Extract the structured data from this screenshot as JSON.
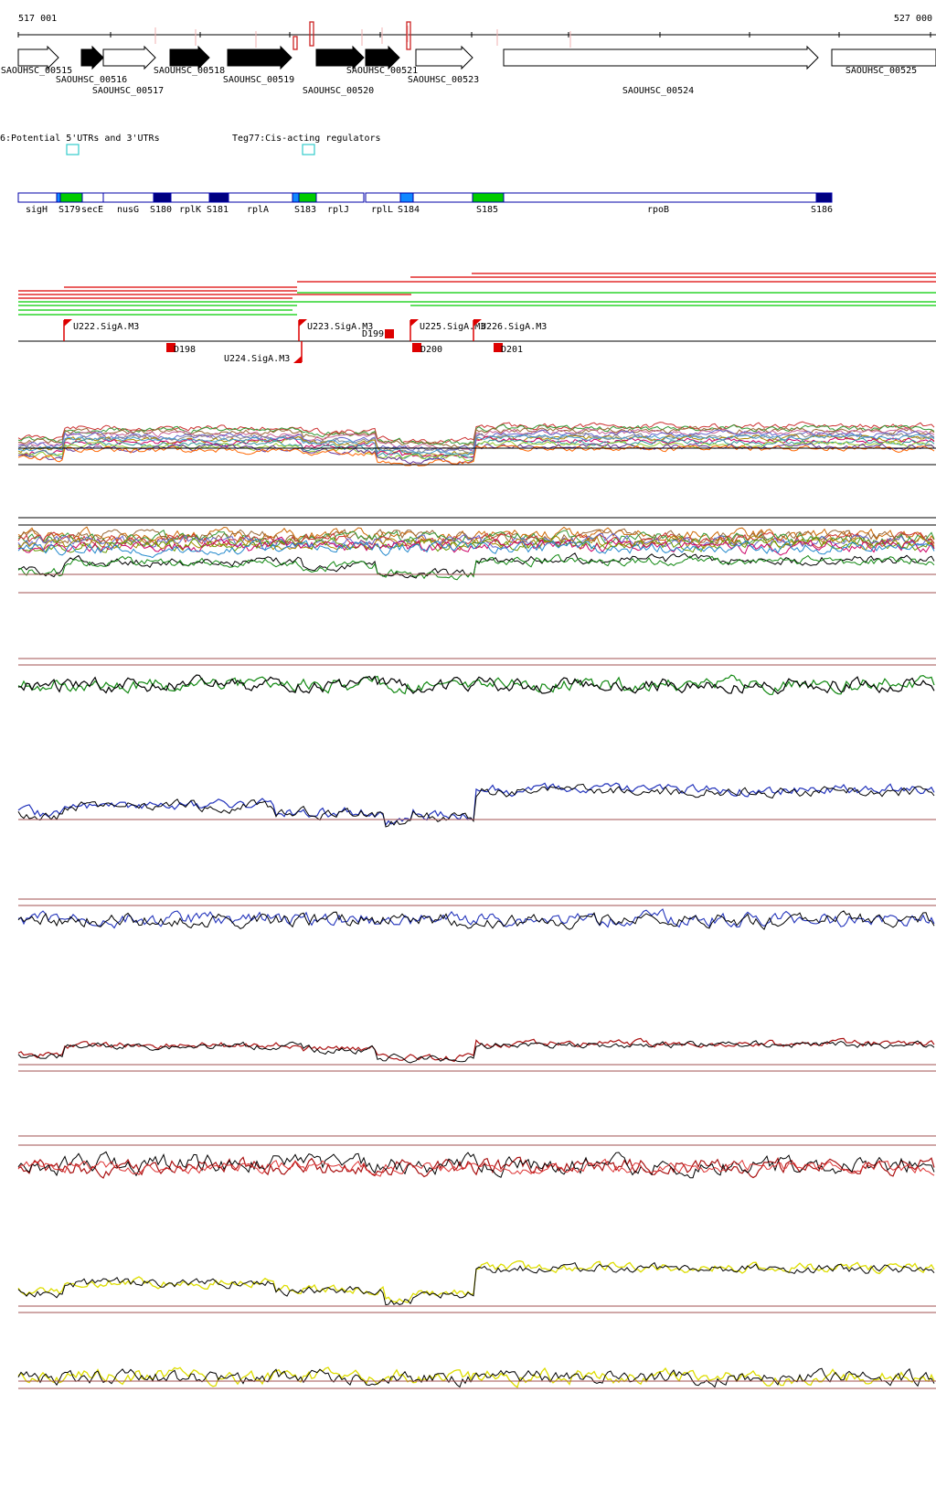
{
  "coords": {
    "start": "517 001",
    "end": "527 000"
  },
  "genes": [
    {
      "id": "SAOUHSC_00515",
      "filled": false
    },
    {
      "id": "SAOUHSC_00516",
      "filled": true
    },
    {
      "id": "SAOUHSC_00517",
      "filled": false
    },
    {
      "id": "SAOUHSC_00518",
      "filled": true
    },
    {
      "id": "SAOUHSC_00519",
      "filled": true
    },
    {
      "id": "SAOUHSC_00520",
      "filled": true
    },
    {
      "id": "SAOUHSC_00521",
      "filled": true
    },
    {
      "id": "SAOUHSC_00523",
      "filled": false
    },
    {
      "id": "SAOUHSC_00524",
      "filled": false
    },
    {
      "id": "SAOUHSC_00525",
      "filled": false
    }
  ],
  "legend": [
    {
      "label": "6:Potential 5'UTRs and 3'UTRs",
      "color": "#33cccc"
    },
    {
      "label": "Teg77:Cis-acting regulators",
      "color": "#33cccc"
    }
  ],
  "segments": [
    {
      "label": "sigH",
      "type": "gene"
    },
    {
      "label": "S179",
      "type": "green"
    },
    {
      "label": "secE",
      "type": "gene"
    },
    {
      "label": "nusG",
      "type": "gene"
    },
    {
      "label": "S180",
      "type": "navy"
    },
    {
      "label": "rplK",
      "type": "gene"
    },
    {
      "label": "S181",
      "type": "navy"
    },
    {
      "label": "rplA",
      "type": "gene"
    },
    {
      "label": "S183",
      "type": "green"
    },
    {
      "label": "rplJ",
      "type": "gene"
    },
    {
      "label": "rplL",
      "type": "gene"
    },
    {
      "label": "S184",
      "type": "light"
    },
    {
      "label": "S185",
      "type": "green"
    },
    {
      "label": "rpoB",
      "type": "gene"
    },
    {
      "label": "S186",
      "type": "navy"
    }
  ],
  "promoters_up": [
    {
      "label": "U222.SigA.M3"
    },
    {
      "label": "U223.SigA.M3"
    },
    {
      "label": "U225.SigA.M3"
    },
    {
      "label": "U226.SigA.M3"
    }
  ],
  "promoters_down": [
    {
      "label": "D198"
    },
    {
      "label": "D199"
    },
    {
      "label": "D200"
    },
    {
      "label": "D201"
    },
    {
      "label": "U224.SigA.M3"
    }
  ],
  "colors": {
    "red": "#dd0000",
    "green": "#00cc00",
    "navy": "#000080",
    "blue": "#2233bb",
    "darkred": "#aa1111",
    "yellow": "#dddd00",
    "darkgreen": "#118811",
    "refline": "#a05050",
    "skyblue": "#1188ff"
  }
}
